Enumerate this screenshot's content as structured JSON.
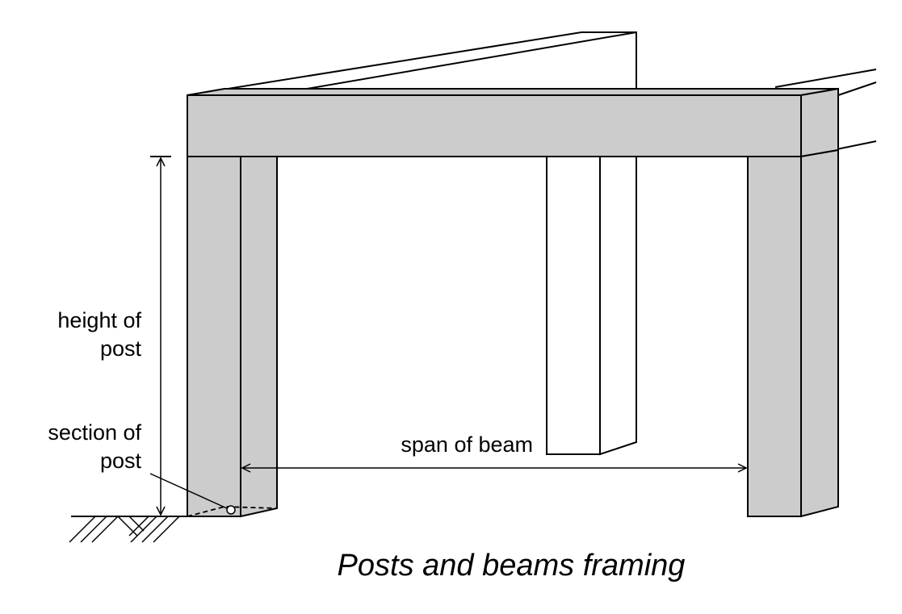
{
  "figure": {
    "caption": "Posts and beams framing",
    "colors": {
      "member_fill": "#cccccc",
      "line": "#000000",
      "background": "#ffffff"
    }
  },
  "labels": {
    "height_of_post": [
      "height of",
      "post"
    ],
    "section_of_post": [
      "section of",
      "post"
    ],
    "span_of_beam": "span of beam"
  }
}
